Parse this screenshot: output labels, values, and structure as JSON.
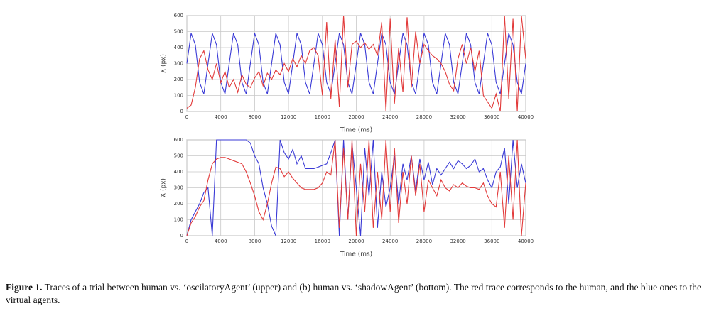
{
  "chart_data": [
    {
      "type": "line",
      "ylabel": "X (px)",
      "xlabel": "Time (ms)",
      "x": [
        0,
        500,
        1000,
        1500,
        2000,
        2500,
        3000,
        3500,
        4000,
        4500,
        5000,
        5500,
        6000,
        6500,
        7000,
        7500,
        8000,
        8500,
        9000,
        9500,
        10000,
        10500,
        11000,
        11500,
        12000,
        12500,
        13000,
        13500,
        14000,
        14500,
        15000,
        15500,
        16000,
        16500,
        17000,
        17500,
        18000,
        18500,
        19000,
        19500,
        20000,
        20500,
        21000,
        21500,
        22000,
        22500,
        23000,
        23500,
        24000,
        24500,
        25000,
        25500,
        26000,
        26500,
        27000,
        27500,
        28000,
        28500,
        29000,
        29500,
        30000,
        30500,
        31000,
        31500,
        32000,
        32500,
        33000,
        33500,
        34000,
        34500,
        35000,
        35500,
        36000,
        36500,
        37000,
        37500,
        38000,
        38500,
        39000,
        39500,
        40000
      ],
      "series": [
        {
          "color": "#3a3ad6",
          "values": [
            300,
            490,
            418,
            182,
            110,
            300,
            490,
            418,
            182,
            110,
            300,
            490,
            418,
            182,
            110,
            300,
            490,
            418,
            182,
            110,
            300,
            490,
            418,
            182,
            110,
            300,
            490,
            418,
            182,
            110,
            300,
            490,
            418,
            182,
            110,
            300,
            490,
            418,
            182,
            110,
            300,
            490,
            418,
            182,
            110,
            300,
            490,
            418,
            182,
            110,
            300,
            490,
            418,
            182,
            110,
            300,
            490,
            418,
            182,
            110,
            300,
            490,
            418,
            182,
            110,
            300,
            490,
            418,
            182,
            110,
            300,
            490,
            418,
            182,
            110,
            300,
            490,
            418,
            182,
            110,
            300
          ]
        },
        {
          "color": "#e23a3a",
          "values": [
            20,
            40,
            150,
            330,
            380,
            260,
            200,
            300,
            180,
            250,
            150,
            200,
            120,
            230,
            170,
            150,
            210,
            250,
            160,
            240,
            200,
            260,
            230,
            300,
            250,
            330,
            280,
            350,
            300,
            380,
            400,
            350,
            100,
            560,
            80,
            450,
            30,
            600,
            150,
            420,
            440,
            400,
            430,
            390,
            420,
            350,
            560,
            0,
            580,
            50,
            400,
            120,
            590,
            150,
            500,
            300,
            420,
            380,
            350,
            330,
            300,
            250,
            170,
            130,
            330,
            420,
            300,
            400,
            250,
            380,
            100,
            60,
            20,
            110,
            0,
            600,
            80,
            580,
            0,
            600,
            330
          ]
        }
      ],
      "xlim": [
        0,
        40000
      ],
      "ylim": [
        0,
        600
      ],
      "xticks": [
        0,
        4000,
        8000,
        12000,
        16000,
        20000,
        24000,
        28000,
        32000,
        36000,
        40000
      ],
      "yticks": [
        0,
        100,
        200,
        300,
        400,
        500,
        600
      ],
      "grid": true
    },
    {
      "type": "line",
      "ylabel": "X (px)",
      "xlabel": "Time (ms)",
      "x": [
        0,
        500,
        1000,
        1500,
        2000,
        2500,
        3000,
        3500,
        4000,
        4500,
        5000,
        5500,
        6000,
        6500,
        7000,
        7500,
        8000,
        8500,
        9000,
        9500,
        10000,
        10500,
        11000,
        11500,
        12000,
        12500,
        13000,
        13500,
        14000,
        14500,
        15000,
        15500,
        16000,
        16500,
        17000,
        17500,
        18000,
        18500,
        19000,
        19500,
        20000,
        20500,
        21000,
        21500,
        22000,
        22500,
        23000,
        23500,
        24000,
        24500,
        25000,
        25500,
        26000,
        26500,
        27000,
        27500,
        28000,
        28500,
        29000,
        29500,
        30000,
        30500,
        31000,
        31500,
        32000,
        32500,
        33000,
        33500,
        34000,
        34500,
        35000,
        35500,
        36000,
        36500,
        37000,
        37500,
        38000,
        38500,
        39000,
        39500,
        40000
      ],
      "series": [
        {
          "color": "#3a3ad6",
          "values": [
            0,
            100,
            150,
            200,
            270,
            300,
            0,
            600,
            600,
            600,
            600,
            600,
            600,
            600,
            600,
            580,
            500,
            450,
            300,
            200,
            60,
            0,
            600,
            520,
            480,
            540,
            450,
            500,
            420,
            420,
            420,
            430,
            440,
            450,
            520,
            600,
            0,
            600,
            100,
            580,
            300,
            0,
            550,
            250,
            600,
            50,
            400,
            180,
            300,
            500,
            200,
            450,
            350,
            500,
            280,
            480,
            350,
            460,
            320,
            420,
            380,
            420,
            460,
            420,
            470,
            450,
            420,
            440,
            480,
            400,
            420,
            350,
            300,
            400,
            430,
            550,
            200,
            600,
            300,
            450,
            330
          ]
        },
        {
          "color": "#e23a3a",
          "values": [
            0,
            80,
            120,
            180,
            220,
            350,
            450,
            480,
            490,
            490,
            480,
            470,
            460,
            450,
            400,
            330,
            250,
            150,
            100,
            200,
            330,
            430,
            420,
            370,
            400,
            360,
            330,
            300,
            290,
            290,
            290,
            300,
            330,
            400,
            380,
            600,
            50,
            550,
            100,
            600,
            0,
            450,
            150,
            600,
            50,
            400,
            100,
            600,
            150,
            550,
            80,
            400,
            200,
            500,
            250,
            450,
            150,
            350,
            300,
            250,
            350,
            300,
            280,
            320,
            300,
            330,
            310,
            300,
            300,
            290,
            330,
            250,
            200,
            180,
            400,
            50,
            500,
            100,
            600,
            0,
            330
          ]
        }
      ],
      "xlim": [
        0,
        40000
      ],
      "ylim": [
        0,
        600
      ],
      "xticks": [
        0,
        4000,
        8000,
        12000,
        16000,
        20000,
        24000,
        28000,
        32000,
        36000,
        40000
      ],
      "yticks": [
        0,
        100,
        200,
        300,
        400,
        500,
        600
      ],
      "grid": true
    }
  ],
  "caption": {
    "label": "Figure 1.",
    "text": "Traces of a trial between human vs. ‘oscilatoryAgent’ (upper) and (b) human vs. ‘shadowAgent’ (bottom). The red trace corresponds to the human, and the blue ones to the virtual agents."
  }
}
